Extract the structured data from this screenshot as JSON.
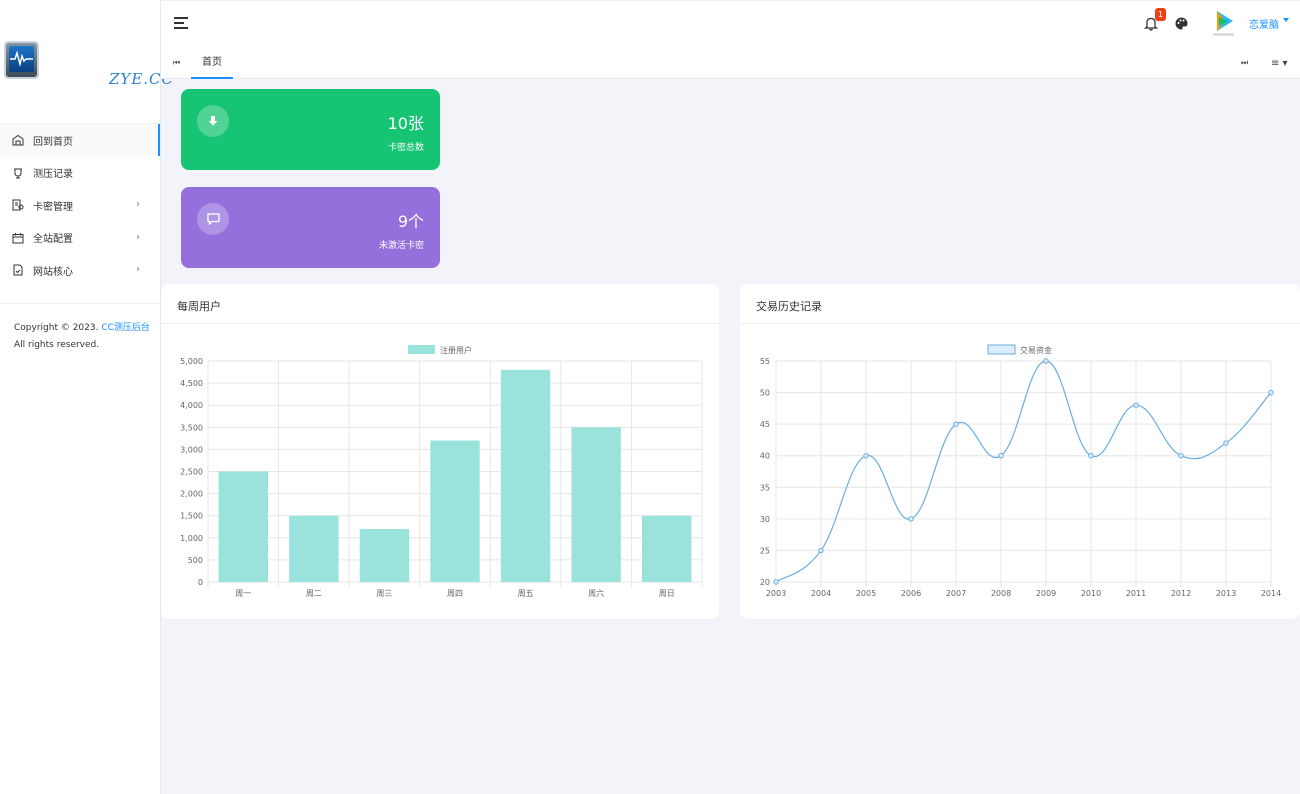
{
  "brand": {
    "name": "ZYE.CC"
  },
  "sidebar": {
    "items": [
      {
        "label": "回到首页",
        "icon": "home-icon"
      },
      {
        "label": "测压记录",
        "icon": "record-icon"
      },
      {
        "label": "卡密管理",
        "icon": "card-manage-icon",
        "arrow": "›"
      },
      {
        "label": "全站配置",
        "icon": "calendar-icon",
        "arrow": "›"
      },
      {
        "label": "网站核心",
        "icon": "file-icon",
        "arrow": "›"
      }
    ],
    "copyright_prefix": "Copyright © 2023. ",
    "copyright_link": "CC测压后台",
    "copyright_rights": "All rights reserved."
  },
  "header": {
    "notification_count": "1",
    "username": "恋爱脑"
  },
  "tabs": {
    "prev": "⏮",
    "home": "首页",
    "next": "⏭",
    "menu": "≡ ▾"
  },
  "stats": [
    {
      "value": "10张",
      "label": "卡密总数",
      "color": "#17c474"
    },
    {
      "value": "9个",
      "label": "未激活卡密",
      "color": "#9370db"
    }
  ],
  "colors": {
    "accent": "#1890ff",
    "bar_fill": "#99e3dc",
    "line_stroke": "#6aaee0"
  },
  "chart_data": [
    {
      "type": "bar",
      "title": "每周用户",
      "legend": "注册用户",
      "legend_position": "top",
      "categories": [
        "周一",
        "周二",
        "周三",
        "周四",
        "周五",
        "周六",
        "周日"
      ],
      "values": [
        2500,
        1500,
        1200,
        3200,
        4800,
        3500,
        1500
      ],
      "ylim": [
        0,
        5000
      ],
      "yticks": [
        "0",
        "500",
        "1,000",
        "1,500",
        "2,000",
        "2,500",
        "3,000",
        "3,500",
        "4,000",
        "4,500",
        "5,000"
      ],
      "grid": true
    },
    {
      "type": "line",
      "title": "交易历史记录",
      "legend": "交易资金",
      "legend_position": "top",
      "categories": [
        "2003",
        "2004",
        "2005",
        "2006",
        "2007",
        "2008",
        "2009",
        "2010",
        "2011",
        "2012",
        "2013",
        "2014"
      ],
      "values": [
        20,
        25,
        40,
        30,
        45,
        40,
        55,
        40,
        48,
        40,
        42,
        50
      ],
      "ylim": [
        20,
        55
      ],
      "yticks": [
        "20",
        "25",
        "30",
        "35",
        "40",
        "45",
        "50",
        "55"
      ],
      "grid": true
    }
  ]
}
